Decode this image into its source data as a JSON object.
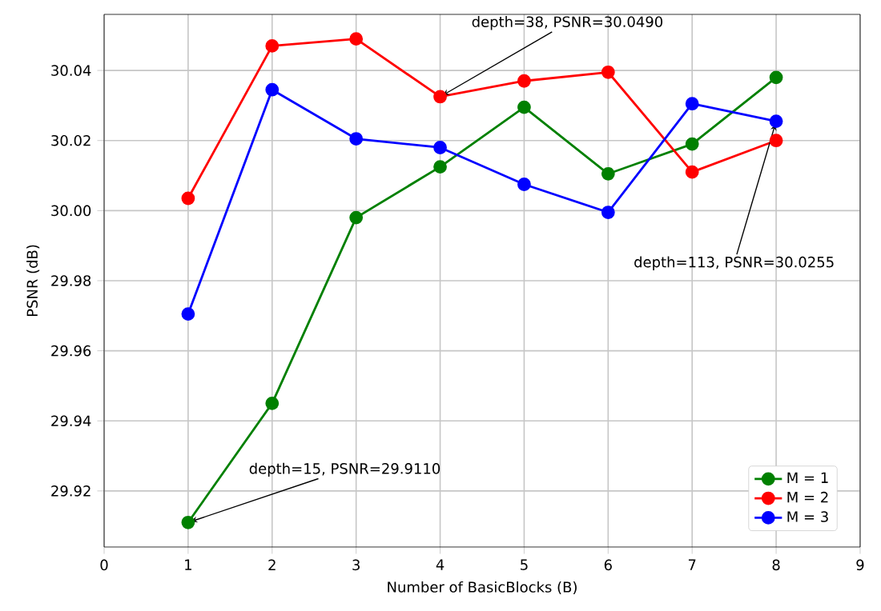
{
  "chart_data": {
    "type": "line",
    "xlabel": "Number of BasicBlocks (B)",
    "ylabel": "PSNR (dB)",
    "x": [
      1,
      2,
      3,
      4,
      5,
      6,
      7,
      8
    ],
    "series": [
      {
        "name": "M = 1",
        "color": "#008000",
        "values": [
          29.911,
          29.945,
          29.998,
          30.0125,
          30.0295,
          30.0105,
          30.019,
          30.038
        ]
      },
      {
        "name": "M = 2",
        "color": "#ff0000",
        "values": [
          30.0035,
          30.047,
          30.049,
          30.0325,
          30.037,
          30.0395,
          30.011,
          30.02
        ]
      },
      {
        "name": "M = 3",
        "color": "#0000ff",
        "values": [
          29.9705,
          30.0345,
          30.0205,
          30.018,
          30.0075,
          29.9995,
          30.0305,
          30.0255
        ]
      }
    ],
    "annotations": [
      {
        "text": "depth=38, PSNR=30.0490",
        "x": 4,
        "y": 30.0325
      },
      {
        "text": "depth=113, PSNR=30.0255",
        "x": 8,
        "y": 30.0255
      },
      {
        "text": "depth=15, PSNR=29.9110",
        "x": 1,
        "y": 29.911
      }
    ],
    "xlim": [
      0,
      9
    ],
    "ylim": [
      29.904,
      30.056
    ],
    "xticks": [
      0,
      1,
      2,
      3,
      4,
      5,
      6,
      7,
      8,
      9
    ],
    "yticks": [
      {
        "value": 29.92,
        "label": "29.92"
      },
      {
        "value": 29.94,
        "label": "29.94"
      },
      {
        "value": 29.96,
        "label": "29.96"
      },
      {
        "value": 29.98,
        "label": "29.98"
      },
      {
        "value": 30.0,
        "label": "30.00"
      },
      {
        "value": 30.02,
        "label": "30.02"
      },
      {
        "value": 30.04,
        "label": "30.04"
      }
    ],
    "grid": true,
    "legend": "bottom right",
    "marker": "circle",
    "line_style": "solid"
  }
}
